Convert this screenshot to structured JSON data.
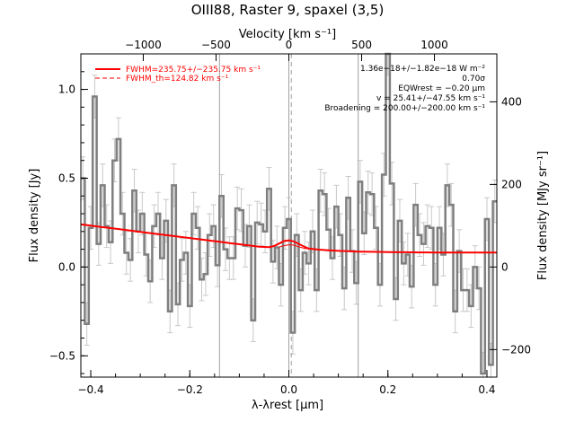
{
  "chart_data": {
    "type": "line",
    "title": "OIII88, Raster 9, spaxel (3,5)",
    "xlabel": "λ-λrest [μm]",
    "ylabel": "Flux density [Jy]",
    "top_axis_label": "Velocity [km s⁻¹]",
    "right_axis_label": "Flux density [MJy sr⁻¹]",
    "xlim": [
      -0.42,
      0.42
    ],
    "ylim": [
      -0.62,
      1.2
    ],
    "grid": false,
    "legend_position": "top-left",
    "x_ticks": [
      -0.4,
      -0.2,
      0.0,
      0.2,
      0.4
    ],
    "x_tick_labels": [
      "−0.4",
      "−0.2",
      "0.0",
      "0.2",
      "0.4"
    ],
    "y_ticks": [
      -0.5,
      0.0,
      0.5,
      1.0
    ],
    "y_tick_labels": [
      "−0.5",
      "0.0",
      "0.5",
      "1.0"
    ],
    "top_ticks": [
      -1000,
      -500,
      0,
      500,
      1000
    ],
    "top_tick_labels": [
      "−1000",
      "−500",
      "0",
      "500",
      "1000"
    ],
    "top_ticks_x": [
      -0.294,
      -0.147,
      0.0,
      0.147,
      0.294
    ],
    "right_ticks": [
      -200,
      0,
      200,
      400
    ],
    "right_tick_labels": [
      "−200",
      "0",
      "200",
      "400"
    ],
    "right_ticks_y": [
      -0.465,
      0.0,
      0.465,
      0.93
    ],
    "vlines_solid": [
      -0.14,
      0.0,
      0.14
    ],
    "vline_dashed": 0.005,
    "colors": {
      "data": "#7f7f7f",
      "error": "#c8c8c8",
      "fit": "#ff0000",
      "ref": "#a0a0a0",
      "text": "#000000"
    },
    "legend": [
      {
        "label": "FWHM=235.75+/−235.75 km s⁻¹",
        "style": "solid"
      },
      {
        "label": "FWHM_th=124.82 km s⁻¹",
        "style": "dashed"
      }
    ],
    "annotations": [
      "1.36e−18+/−1.82e−18 W m⁻²",
      "0.70σ",
      "EQWrest = −0.20 μm",
      "v = 25.41+/−47.55 km s⁻¹",
      "Broadening = 200.00+/−200.00 km s⁻¹"
    ],
    "series": [
      {
        "x": [
          -0.416,
          -0.408,
          -0.4,
          -0.392,
          -0.384,
          -0.376,
          -0.368,
          -0.36,
          -0.352,
          -0.344,
          -0.336,
          -0.328,
          -0.32,
          -0.312,
          -0.304,
          -0.296,
          -0.288,
          -0.28,
          -0.272,
          -0.264,
          -0.256,
          -0.248,
          -0.24,
          -0.232,
          -0.224,
          -0.216,
          -0.208,
          -0.2,
          -0.192,
          -0.184,
          -0.176,
          -0.168,
          -0.16,
          -0.152,
          -0.144,
          -0.136,
          -0.128,
          -0.12,
          -0.112,
          -0.104,
          -0.096,
          -0.088,
          -0.08,
          -0.072,
          -0.064,
          -0.056,
          -0.048,
          -0.04,
          -0.032,
          -0.024,
          -0.016,
          -0.008,
          0.0,
          0.008,
          0.016,
          0.024,
          0.032,
          0.04,
          0.048,
          0.056,
          0.064,
          0.072,
          0.08,
          0.088,
          0.096,
          0.104,
          0.112,
          0.12,
          0.128,
          0.136,
          0.144,
          0.152,
          0.16,
          0.168,
          0.176,
          0.184,
          0.192,
          0.2,
          0.208,
          0.216,
          0.224,
          0.232,
          0.24,
          0.248,
          0.256,
          0.264,
          0.272,
          0.28,
          0.288,
          0.296,
          0.304,
          0.312,
          0.32,
          0.328,
          0.336,
          0.344,
          0.352,
          0.36,
          0.368,
          0.376,
          0.384,
          0.392,
          0.4,
          0.408,
          0.416
        ],
        "y": [
          0.5,
          -0.32,
          0.22,
          0.96,
          0.13,
          0.46,
          0.23,
          0.14,
          0.6,
          0.72,
          0.3,
          0.08,
          0.04,
          0.43,
          0.2,
          0.3,
          0.07,
          -0.08,
          0.23,
          0.3,
          0.05,
          0.26,
          -0.25,
          0.46,
          -0.21,
          0.04,
          0.08,
          -0.22,
          0.3,
          0.22,
          -0.07,
          -0.04,
          0.18,
          0.23,
          0.01,
          0.4,
          0.1,
          0.05,
          0.05,
          0.33,
          0.32,
          0.12,
          0.23,
          -0.3,
          0.25,
          0.24,
          0.2,
          0.44,
          0.03,
          0.11,
          -0.1,
          0.22,
          0.27,
          -0.37,
          0.18,
          -0.13,
          0.08,
          0.02,
          0.2,
          -0.13,
          0.43,
          0.41,
          0.21,
          0.05,
          0.34,
          0.18,
          -0.12,
          0.39,
          0.09,
          -0.09,
          0.48,
          0.19,
          0.42,
          0.41,
          0.22,
          -0.1,
          0.52,
          1.2,
          0.47,
          -0.18,
          0.26,
          0.02,
          0.07,
          -0.11,
          0.35,
          0.18,
          0.13,
          0.23,
          0.22,
          -0.1,
          0.22,
          0.07,
          0.46,
          0.35,
          -0.25,
          0.09,
          -0.13,
          -0.13,
          -0.22,
          0.0,
          -0.12,
          -0.6,
          0.27,
          -0.55,
          0.37
        ],
        "err": [
          0.12,
          0.12,
          0.12,
          0.12,
          0.12,
          0.12,
          0.12,
          0.12,
          0.12,
          0.12,
          0.12,
          0.12,
          0.12,
          0.12,
          0.12,
          0.12,
          0.12,
          0.12,
          0.12,
          0.12,
          0.12,
          0.12,
          0.12,
          0.12,
          0.12,
          0.12,
          0.12,
          0.12,
          0.12,
          0.12,
          0.12,
          0.12,
          0.12,
          0.12,
          0.12,
          0.12,
          0.12,
          0.12,
          0.12,
          0.12,
          0.12,
          0.12,
          0.12,
          0.12,
          0.12,
          0.12,
          0.12,
          0.12,
          0.12,
          0.12,
          0.12,
          0.12,
          0.12,
          0.12,
          0.12,
          0.12,
          0.12,
          0.12,
          0.12,
          0.12,
          0.12,
          0.12,
          0.12,
          0.12,
          0.12,
          0.12,
          0.12,
          0.12,
          0.12,
          0.12,
          0.12,
          0.12,
          0.12,
          0.12,
          0.12,
          0.12,
          0.12,
          0.12,
          0.12,
          0.12,
          0.12,
          0.12,
          0.12,
          0.12,
          0.12,
          0.12,
          0.12,
          0.12,
          0.12,
          0.12,
          0.12,
          0.12,
          0.12,
          0.12,
          0.12,
          0.12,
          0.12,
          0.12,
          0.12,
          0.12,
          0.12,
          0.12,
          0.12,
          0.12,
          0.12
        ]
      },
      {
        "x": [
          -0.42,
          -0.4,
          -0.38,
          -0.36,
          -0.34,
          -0.32,
          -0.3,
          -0.28,
          -0.26,
          -0.24,
          -0.22,
          -0.2,
          -0.18,
          -0.16,
          -0.14,
          -0.12,
          -0.1,
          -0.08,
          -0.06,
          -0.04,
          -0.03,
          -0.02,
          -0.01,
          0.0,
          0.01,
          0.02,
          0.03,
          0.04,
          0.06,
          0.08,
          0.1,
          0.12,
          0.14,
          0.16,
          0.18,
          0.2,
          0.22,
          0.24,
          0.26,
          0.28,
          0.3,
          0.32,
          0.34,
          0.36,
          0.38,
          0.4,
          0.42
        ],
        "y": [
          0.24,
          0.233,
          0.226,
          0.219,
          0.212,
          0.205,
          0.198,
          0.191,
          0.184,
          0.177,
          0.17,
          0.163,
          0.156,
          0.149,
          0.142,
          0.135,
          0.128,
          0.121,
          0.114,
          0.112,
          0.118,
          0.132,
          0.146,
          0.15,
          0.144,
          0.13,
          0.116,
          0.104,
          0.098,
          0.094,
          0.091,
          0.089,
          0.087,
          0.086,
          0.085,
          0.084,
          0.083,
          0.083,
          0.082,
          0.082,
          0.081,
          0.081,
          0.081,
          0.081,
          0.081,
          0.081,
          0.081
        ]
      },
      {
        "x": [
          -0.02,
          -0.01,
          0.0,
          0.01,
          0.02,
          0.03,
          0.04
        ],
        "y": [
          0.112,
          0.12,
          0.125,
          0.123,
          0.114,
          0.106,
          0.102
        ]
      }
    ]
  }
}
